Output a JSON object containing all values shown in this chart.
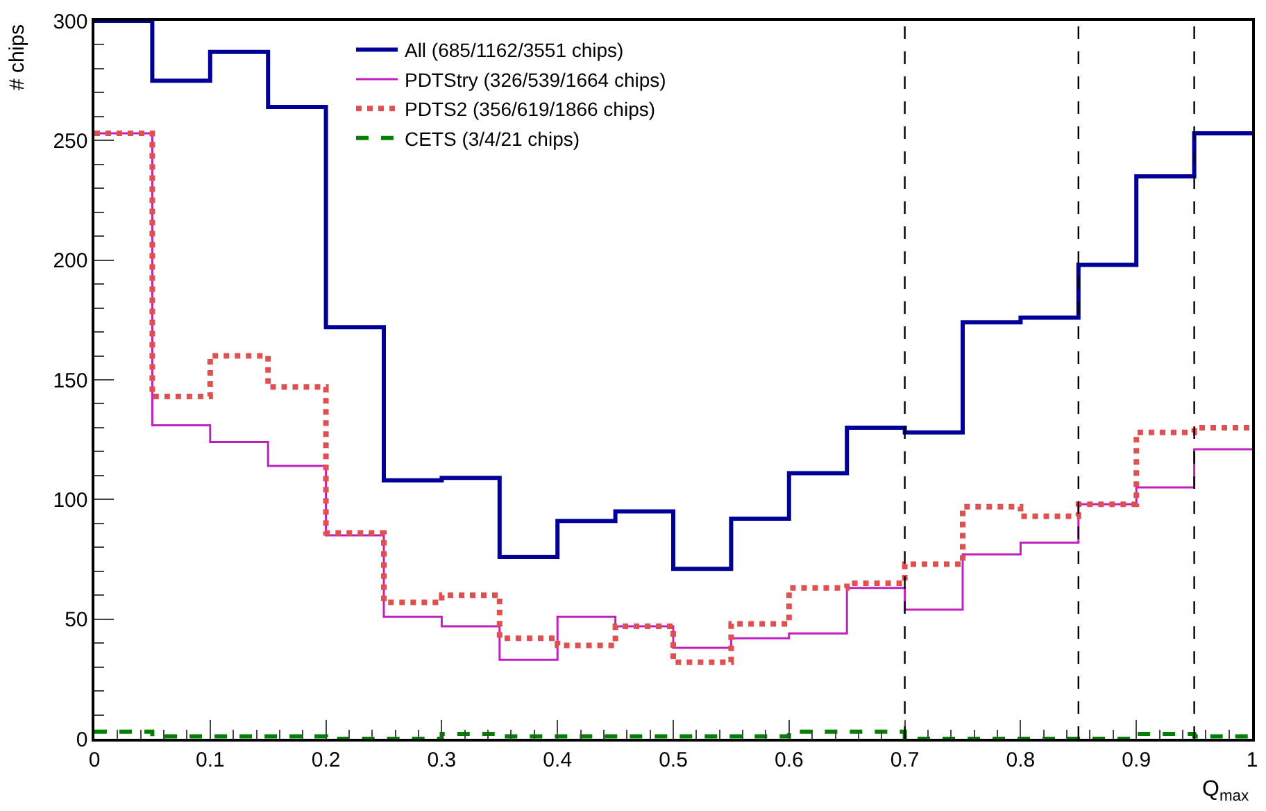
{
  "chart_data": {
    "type": "histogram",
    "xlabel": "Q$_{max}$",
    "ylabel": "# chips",
    "bins": [
      0,
      0.05,
      0.1,
      0.15,
      0.2,
      0.25,
      0.3,
      0.35,
      0.4,
      0.45,
      0.5,
      0.55,
      0.6,
      0.65,
      0.7,
      0.75,
      0.8,
      0.85,
      0.9,
      0.95,
      1
    ],
    "series": [
      {
        "name": "All (685/1162/3551 chips)",
        "color": "#000099",
        "line_style": "solid",
        "values": [
          300,
          275,
          287,
          264,
          172,
          108,
          109,
          76,
          91,
          95,
          71,
          92,
          111,
          130,
          128,
          174,
          176,
          198,
          235,
          253
        ]
      },
      {
        "name": "PDTStry (326/539/1664 chips)",
        "color": "#c020c0",
        "line_style": "solid",
        "values": [
          253,
          131,
          124,
          114,
          85,
          51,
          47,
          33,
          51,
          47,
          38,
          42,
          44,
          63,
          54,
          77,
          82,
          98,
          105,
          121
        ]
      },
      {
        "name": "PDTS2 (356/619/1866 chips)",
        "color": "#e05050",
        "line_style": "dotted",
        "values": [
          253,
          143,
          160,
          147,
          86,
          57,
          60,
          42,
          39,
          47,
          32,
          48,
          63,
          65,
          73,
          97,
          93,
          98,
          128,
          130
        ]
      },
      {
        "name": "CETS (3/4/21 chips)",
        "color": "#008000",
        "line_style": "dashed",
        "values": [
          3,
          1,
          1,
          1,
          0,
          0,
          2,
          1,
          1,
          1,
          1,
          1,
          3,
          3,
          0,
          0,
          0,
          0,
          2,
          1
        ]
      }
    ],
    "xlim": [
      0,
      1
    ],
    "xticks": [
      0,
      0.1,
      0.2,
      0.3,
      0.4,
      0.5,
      0.6,
      0.7,
      0.8,
      0.9,
      1
    ],
    "ylim": [
      0,
      300
    ],
    "yticks": [
      0,
      50,
      100,
      150,
      200,
      250,
      300
    ],
    "ref_lines": [
      {
        "axis": "x",
        "value": 0.7,
        "color": "#000000",
        "line_style": "dashed"
      },
      {
        "axis": "x",
        "value": 0.85,
        "color": "#000000",
        "line_style": "dashed"
      },
      {
        "axis": "x",
        "value": 0.95,
        "color": "#000000",
        "line_style": "dashed"
      }
    ],
    "grid": false,
    "legend": "top"
  }
}
